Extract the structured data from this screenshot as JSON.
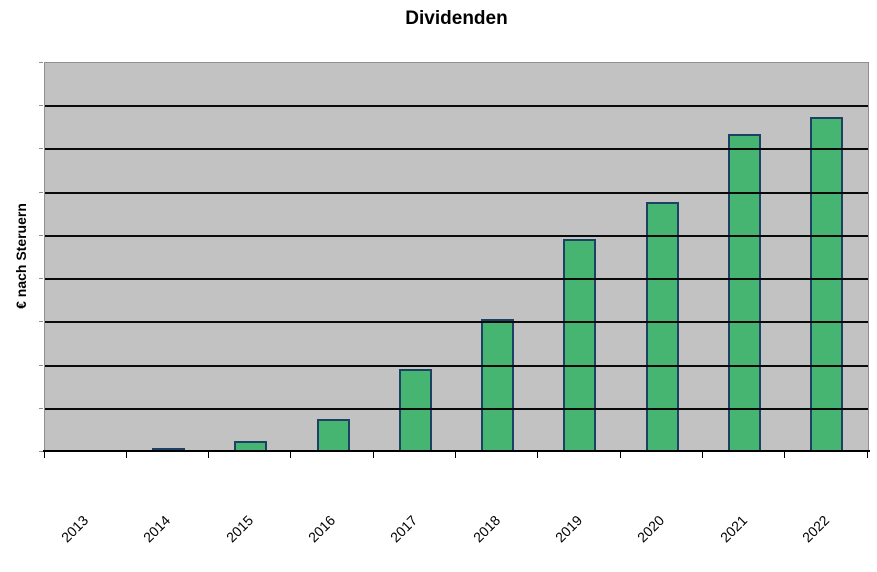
{
  "chart_data": {
    "type": "bar",
    "title": "Dividenden",
    "ylabel": "€ nach Steruern",
    "xlabel": "",
    "categories": [
      "2013",
      "2014",
      "2015",
      "2016",
      "2017",
      "2018",
      "2019",
      "2020",
      "2021",
      "2022"
    ],
    "values": [
      0,
      0.09,
      0.25,
      0.76,
      1.92,
      3.07,
      4.92,
      5.79,
      7.36,
      7.76
    ],
    "value_note": "y axis has no numeric tick labels; values estimated in gridline intervals",
    "ylim": [
      0,
      9
    ],
    "gridline_step": 1,
    "grid": "horizontal-only",
    "legend": "none",
    "x_tick_label_rotation_deg": 45,
    "style": {
      "plot_background": "#c2c2c2",
      "plot_border": "#8f8f8f",
      "gridline_color": "#0a0a0a",
      "bar_fill": "#45b571",
      "bar_border": "#1c4165",
      "axis_color": "#000000",
      "y_tick_color": "#8f8f8f",
      "text_color": "#000000"
    }
  }
}
